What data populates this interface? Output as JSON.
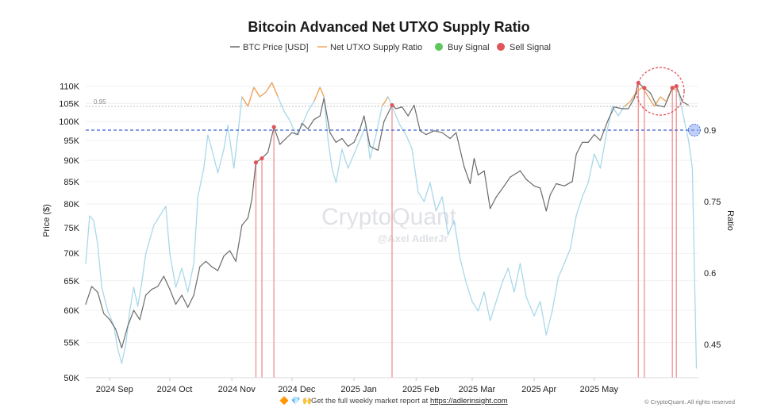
{
  "chart_data": {
    "type": "line",
    "title": "Bitcoin Advanced Net UTXO Supply Ratio",
    "legend": [
      {
        "name": "BTC Price [USD]",
        "kind": "line",
        "color": "#6b6b6b"
      },
      {
        "name": "Net UTXO Supply Ratio",
        "kind": "line",
        "color": "#f2a55a"
      },
      {
        "name": "Buy Signal",
        "kind": "dot",
        "color": "#5cc85c"
      },
      {
        "name": "Sell Signal",
        "kind": "dot",
        "color": "#e0555c"
      }
    ],
    "legend_placement": "top-center",
    "y_left": {
      "label": "Price ($)",
      "scale": "log",
      "ylim": [
        50000,
        114000
      ],
      "ticks": [
        50000,
        55000,
        60000,
        65000,
        70000,
        75000,
        80000,
        85000,
        90000,
        95000,
        100000,
        105000,
        110000
      ],
      "tick_labels": [
        "50K",
        "55K",
        "60K",
        "65K",
        "70K",
        "75K",
        "80K",
        "85K",
        "90K",
        "95K",
        "100K",
        "105K",
        "110K"
      ]
    },
    "y_right": {
      "label": "Ratio",
      "ylim": [
        0.38,
        1.02
      ],
      "ticks": [
        0.45,
        0.6,
        0.75,
        0.9
      ],
      "tick_labels": [
        "0.45",
        "0.6",
        "0.75",
        "0.9"
      ]
    },
    "x_ticks": [
      {
        "date": "2024-09-01",
        "label": "2024 Sep"
      },
      {
        "date": "2024-10-01",
        "label": "2024 Oct"
      },
      {
        "date": "2024-11-01",
        "label": "2024 Nov"
      },
      {
        "date": "2024-12-01",
        "label": "2024 Dec"
      },
      {
        "date": "2025-01-01",
        "label": "2025 Jan"
      },
      {
        "date": "2025-02-01",
        "label": "2025 Feb"
      },
      {
        "date": "2025-03-01",
        "label": "2025 Mar"
      },
      {
        "date": "2025-04-01",
        "label": "2025 Apr"
      },
      {
        "date": "2025-05-01",
        "label": "2025 May"
      }
    ],
    "x_range": [
      "2024-08-20",
      "2025-06-22"
    ],
    "threshold": {
      "value": 0.95,
      "label": "0.95"
    },
    "reference_ratio": 0.9,
    "series_price": {
      "name": "BTC Price [USD]",
      "points": [
        [
          "2024-08-20",
          61000
        ],
        [
          "2024-08-23",
          64000
        ],
        [
          "2024-08-26",
          63000
        ],
        [
          "2024-08-29",
          59500
        ],
        [
          "2024-09-01",
          58500
        ],
        [
          "2024-09-04",
          57000
        ],
        [
          "2024-09-07",
          54200
        ],
        [
          "2024-09-10",
          57500
        ],
        [
          "2024-09-13",
          60000
        ],
        [
          "2024-09-16",
          58500
        ],
        [
          "2024-09-19",
          62500
        ],
        [
          "2024-09-22",
          63500
        ],
        [
          "2024-09-25",
          64000
        ],
        [
          "2024-09-28",
          65800
        ],
        [
          "2024-10-01",
          63500
        ],
        [
          "2024-10-04",
          61000
        ],
        [
          "2024-10-07",
          62500
        ],
        [
          "2024-10-10",
          60500
        ],
        [
          "2024-10-13",
          62500
        ],
        [
          "2024-10-16",
          67500
        ],
        [
          "2024-10-19",
          68500
        ],
        [
          "2024-10-22",
          67500
        ],
        [
          "2024-10-25",
          66800
        ],
        [
          "2024-10-28",
          69500
        ],
        [
          "2024-10-31",
          70500
        ],
        [
          "2024-11-03",
          68500
        ],
        [
          "2024-11-06",
          75500
        ],
        [
          "2024-11-09",
          77000
        ],
        [
          "2024-11-11",
          81000
        ],
        [
          "2024-11-13",
          89500
        ],
        [
          "2024-11-16",
          90500
        ],
        [
          "2024-11-19",
          92000
        ],
        [
          "2024-11-22",
          98500
        ],
        [
          "2024-11-25",
          94000
        ],
        [
          "2024-11-28",
          95500
        ],
        [
          "2024-12-01",
          97000
        ],
        [
          "2024-12-04",
          96500
        ],
        [
          "2024-12-06",
          99500
        ],
        [
          "2024-12-09",
          98000
        ],
        [
          "2024-12-12",
          100500
        ],
        [
          "2024-12-15",
          101500
        ],
        [
          "2024-12-17",
          106500
        ],
        [
          "2024-12-20",
          97000
        ],
        [
          "2024-12-23",
          94500
        ],
        [
          "2024-12-26",
          95500
        ],
        [
          "2024-12-29",
          93500
        ],
        [
          "2025-01-01",
          94500
        ],
        [
          "2025-01-04",
          98000
        ],
        [
          "2025-01-06",
          101500
        ],
        [
          "2025-01-09",
          93500
        ],
        [
          "2025-01-13",
          92500
        ],
        [
          "2025-01-16",
          100000
        ],
        [
          "2025-01-20",
          104500
        ],
        [
          "2025-01-22",
          103500
        ],
        [
          "2025-01-25",
          104000
        ],
        [
          "2025-01-28",
          101500
        ],
        [
          "2025-01-31",
          104500
        ],
        [
          "2025-02-03",
          97500
        ],
        [
          "2025-02-06",
          96500
        ],
        [
          "2025-02-10",
          97500
        ],
        [
          "2025-02-14",
          97000
        ],
        [
          "2025-02-18",
          95500
        ],
        [
          "2025-02-21",
          97000
        ],
        [
          "2025-02-25",
          88500
        ],
        [
          "2025-02-28",
          84500
        ],
        [
          "2025-03-02",
          90500
        ],
        [
          "2025-03-04",
          86500
        ],
        [
          "2025-03-07",
          87500
        ],
        [
          "2025-03-10",
          79000
        ],
        [
          "2025-03-13",
          81500
        ],
        [
          "2025-03-17",
          84000
        ],
        [
          "2025-03-20",
          86000
        ],
        [
          "2025-03-25",
          87500
        ],
        [
          "2025-03-28",
          85500
        ],
        [
          "2025-04-01",
          84000
        ],
        [
          "2025-04-04",
          83500
        ],
        [
          "2025-04-07",
          78500
        ],
        [
          "2025-04-09",
          82000
        ],
        [
          "2025-04-12",
          84500
        ],
        [
          "2025-04-16",
          84000
        ],
        [
          "2025-04-20",
          85000
        ],
        [
          "2025-04-22",
          91500
        ],
        [
          "2025-04-25",
          94500
        ],
        [
          "2025-04-28",
          94500
        ],
        [
          "2025-05-01",
          96500
        ],
        [
          "2025-05-04",
          95000
        ],
        [
          "2025-05-08",
          100500
        ],
        [
          "2025-05-11",
          104000
        ],
        [
          "2025-05-15",
          103500
        ],
        [
          "2025-05-18",
          103500
        ],
        [
          "2025-05-21",
          106500
        ],
        [
          "2025-05-23",
          111000
        ],
        [
          "2025-05-26",
          109500
        ],
        [
          "2025-05-29",
          108000
        ],
        [
          "2025-06-01",
          104500
        ],
        [
          "2025-06-05",
          104000
        ],
        [
          "2025-06-09",
          109500
        ],
        [
          "2025-06-11",
          110000
        ],
        [
          "2025-06-14",
          105500
        ],
        [
          "2025-06-17",
          104500
        ]
      ]
    },
    "series_ratio": {
      "name": "Net UTXO Supply Ratio",
      "points": [
        [
          "2024-08-20",
          0.62
        ],
        [
          "2024-08-22",
          0.72
        ],
        [
          "2024-08-24",
          0.71
        ],
        [
          "2024-08-26",
          0.66
        ],
        [
          "2024-08-28",
          0.57
        ],
        [
          "2024-08-31",
          0.52
        ],
        [
          "2024-09-03",
          0.49
        ],
        [
          "2024-09-05",
          0.44
        ],
        [
          "2024-09-07",
          0.41
        ],
        [
          "2024-09-09",
          0.45
        ],
        [
          "2024-09-11",
          0.52
        ],
        [
          "2024-09-13",
          0.57
        ],
        [
          "2024-09-15",
          0.53
        ],
        [
          "2024-09-17",
          0.58
        ],
        [
          "2024-09-19",
          0.64
        ],
        [
          "2024-09-21",
          0.67
        ],
        [
          "2024-09-23",
          0.7
        ],
        [
          "2024-09-26",
          0.72
        ],
        [
          "2024-09-29",
          0.74
        ],
        [
          "2024-10-01",
          0.64
        ],
        [
          "2024-10-04",
          0.57
        ],
        [
          "2024-10-07",
          0.61
        ],
        [
          "2024-10-10",
          0.56
        ],
        [
          "2024-10-13",
          0.62
        ],
        [
          "2024-10-15",
          0.76
        ],
        [
          "2024-10-18",
          0.82
        ],
        [
          "2024-10-20",
          0.89
        ],
        [
          "2024-10-22",
          0.86
        ],
        [
          "2024-10-25",
          0.81
        ],
        [
          "2024-10-28",
          0.86
        ],
        [
          "2024-10-30",
          0.91
        ],
        [
          "2024-11-02",
          0.82
        ],
        [
          "2024-11-04",
          0.89
        ],
        [
          "2024-11-06",
          0.97
        ],
        [
          "2024-11-09",
          0.95
        ],
        [
          "2024-11-12",
          0.99
        ],
        [
          "2024-11-15",
          0.97
        ],
        [
          "2024-11-18",
          0.98
        ],
        [
          "2024-11-21",
          1.0
        ],
        [
          "2024-11-24",
          0.97
        ],
        [
          "2024-11-27",
          0.94
        ],
        [
          "2024-11-30",
          0.92
        ],
        [
          "2024-12-03",
          0.89
        ],
        [
          "2024-12-06",
          0.91
        ],
        [
          "2024-12-09",
          0.94
        ],
        [
          "2024-12-12",
          0.96
        ],
        [
          "2024-12-15",
          0.99
        ],
        [
          "2024-12-17",
          0.97
        ],
        [
          "2024-12-19",
          0.88
        ],
        [
          "2024-12-21",
          0.82
        ],
        [
          "2024-12-23",
          0.79
        ],
        [
          "2024-12-26",
          0.86
        ],
        [
          "2024-12-29",
          0.82
        ],
        [
          "2025-01-01",
          0.85
        ],
        [
          "2025-01-04",
          0.88
        ],
        [
          "2025-01-07",
          0.91
        ],
        [
          "2025-01-09",
          0.84
        ],
        [
          "2025-01-12",
          0.89
        ],
        [
          "2025-01-15",
          0.95
        ],
        [
          "2025-01-18",
          0.97
        ],
        [
          "2025-01-21",
          0.94
        ],
        [
          "2025-01-24",
          0.91
        ],
        [
          "2025-01-27",
          0.89
        ],
        [
          "2025-01-30",
          0.86
        ],
        [
          "2025-02-02",
          0.77
        ],
        [
          "2025-02-05",
          0.75
        ],
        [
          "2025-02-08",
          0.79
        ],
        [
          "2025-02-11",
          0.73
        ],
        [
          "2025-02-14",
          0.76
        ],
        [
          "2025-02-17",
          0.68
        ],
        [
          "2025-02-20",
          0.71
        ],
        [
          "2025-02-23",
          0.63
        ],
        [
          "2025-02-26",
          0.58
        ],
        [
          "2025-03-01",
          0.54
        ],
        [
          "2025-03-04",
          0.52
        ],
        [
          "2025-03-07",
          0.56
        ],
        [
          "2025-03-10",
          0.5
        ],
        [
          "2025-03-13",
          0.54
        ],
        [
          "2025-03-16",
          0.58
        ],
        [
          "2025-03-19",
          0.61
        ],
        [
          "2025-03-22",
          0.56
        ],
        [
          "2025-03-25",
          0.62
        ],
        [
          "2025-03-28",
          0.55
        ],
        [
          "2025-04-01",
          0.51
        ],
        [
          "2025-04-04",
          0.54
        ],
        [
          "2025-04-07",
          0.47
        ],
        [
          "2025-04-10",
          0.52
        ],
        [
          "2025-04-13",
          0.59
        ],
        [
          "2025-04-16",
          0.62
        ],
        [
          "2025-04-19",
          0.65
        ],
        [
          "2025-04-22",
          0.72
        ],
        [
          "2025-04-25",
          0.76
        ],
        [
          "2025-04-28",
          0.79
        ],
        [
          "2025-05-01",
          0.85
        ],
        [
          "2025-05-04",
          0.82
        ],
        [
          "2025-05-07",
          0.89
        ],
        [
          "2025-05-10",
          0.95
        ],
        [
          "2025-05-13",
          0.93
        ],
        [
          "2025-05-16",
          0.95
        ],
        [
          "2025-05-19",
          0.96
        ],
        [
          "2025-05-22",
          0.98
        ],
        [
          "2025-05-25",
          0.99
        ],
        [
          "2025-05-28",
          0.97
        ],
        [
          "2025-05-31",
          0.95
        ],
        [
          "2025-06-03",
          0.97
        ],
        [
          "2025-06-06",
          0.96
        ],
        [
          "2025-06-09",
          0.99
        ],
        [
          "2025-06-12",
          0.98
        ],
        [
          "2025-06-15",
          0.92
        ],
        [
          "2025-06-17",
          0.88
        ],
        [
          "2025-06-19",
          0.82
        ],
        [
          "2025-06-21",
          0.4
        ]
      ]
    },
    "sell_signals": [
      {
        "date": "2024-11-13",
        "price": 89500
      },
      {
        "date": "2024-11-16",
        "price": 90500
      },
      {
        "date": "2024-11-22",
        "price": 98500
      },
      {
        "date": "2025-01-20",
        "price": 104500
      },
      {
        "date": "2025-05-23",
        "price": 111000
      },
      {
        "date": "2025-05-26",
        "price": 109500
      },
      {
        "date": "2025-06-09",
        "price": 109500
      },
      {
        "date": "2025-06-11",
        "price": 110000
      }
    ],
    "buy_signals": [],
    "highlights": [
      {
        "kind": "circle",
        "color": "#e0555c",
        "date": "2025-06-03",
        "price": 108500
      },
      {
        "kind": "circle",
        "color": "#4a78e8",
        "date": "2025-06-20",
        "ratio": 0.9
      }
    ],
    "watermark": {
      "brand": "CryptoQuant",
      "author": "@Axel AdlerJr"
    }
  },
  "footer": {
    "icons": [
      "diamond-icon",
      "gem-icon",
      "raised-hands-icon"
    ],
    "icon_glyphs": [
      "🔶",
      "💎",
      "🙌"
    ],
    "text": "Get the full weekly market report at ",
    "link": "https://adlerinsight.com",
    "copyright": "© CryptoQuant. All rights reserved"
  }
}
